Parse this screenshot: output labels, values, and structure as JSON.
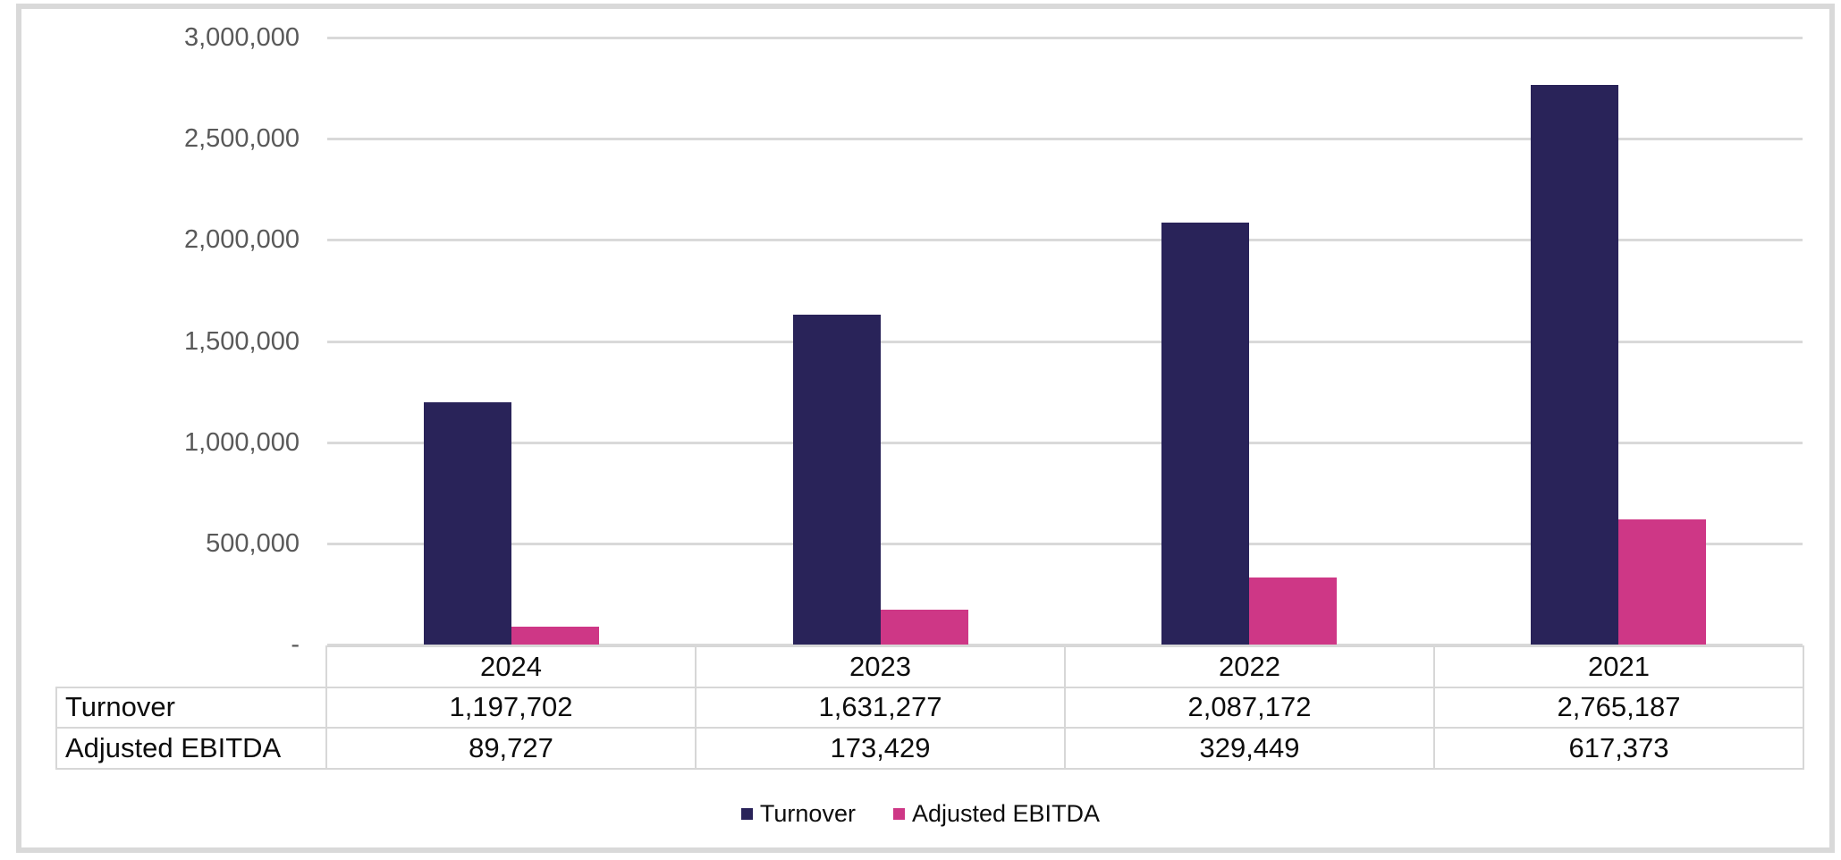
{
  "chart_data": {
    "type": "bar",
    "categories": [
      "2024",
      "2023",
      "2022",
      "2021"
    ],
    "series": [
      {
        "name": "Turnover",
        "color": "#292359",
        "values": [
          1197702,
          1631277,
          2087172,
          2765187
        ],
        "labels": [
          "1,197,702",
          "1,631,277",
          "2,087,172",
          "2,765,187"
        ]
      },
      {
        "name": "Adjusted EBITDA",
        "color": "#CE3786",
        "values": [
          89727,
          173429,
          329449,
          617373
        ],
        "labels": [
          "89,727",
          "173,429",
          "329,449",
          "617,373"
        ]
      }
    ],
    "y_axis": {
      "min": 0,
      "max": 3000000,
      "step": 500000,
      "tick_labels": [
        "3,000,000",
        "2,500,000",
        "2,000,000",
        "1,500,000",
        "1,000,000",
        "500,000",
        "-"
      ]
    },
    "title": "",
    "xlabel": "",
    "ylabel": "",
    "grid": true,
    "legend_position": "bottom",
    "colors": {
      "gridline": "#D9D9D9",
      "frame_border": "#D9D9D9",
      "axis_label_text": "#595959",
      "table_text": "#0d0d0d",
      "table_border": "#D7D7D7",
      "background": "#FFFFFF"
    }
  }
}
